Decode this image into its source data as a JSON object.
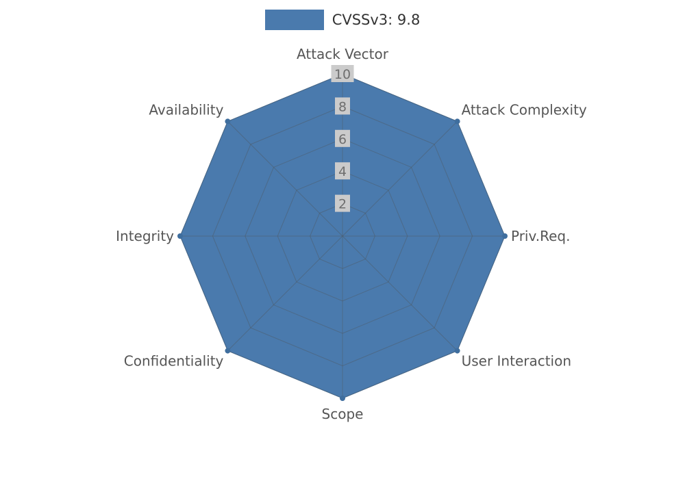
{
  "legend": {
    "label": "CVSSv3: 9.8"
  },
  "chart_data": {
    "type": "radar",
    "title": "",
    "categories": [
      "Attack Vector",
      "Attack Complexity",
      "Priv.Req.",
      "User Interaction",
      "Scope",
      "Confidentiality",
      "Integrity",
      "Availability"
    ],
    "series": [
      {
        "name": "CVSSv3: 9.8",
        "values": [
          10,
          10,
          10,
          10,
          10,
          10,
          10,
          10
        ]
      }
    ],
    "ticks": [
      2,
      4,
      6,
      8,
      10
    ],
    "rlim": [
      0,
      10
    ],
    "grid": true,
    "legend_position": "top",
    "colors": {
      "fill": "#4a7aad",
      "stroke": "#3f6e9e",
      "grid": "#4d5a66",
      "tick_bg": "#cbcbcb",
      "tick_text": "#6e6e6e",
      "label_text": "#555555"
    }
  }
}
